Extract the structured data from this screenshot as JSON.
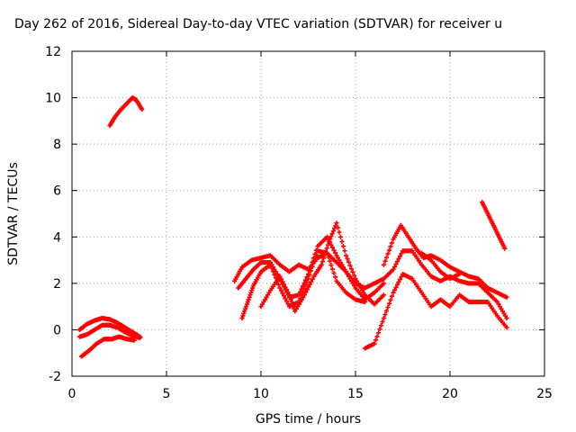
{
  "chart_data": {
    "type": "scatter",
    "title": "Day 262 of 2016, Sidereal Day-to-day VTEC variation (SDTVAR) for receiver u",
    "xlabel": "GPS time / hours",
    "ylabel": "SDTVAR / TECUs",
    "xlim": [
      0,
      25
    ],
    "ylim": [
      -2,
      12
    ],
    "xticks": [
      0,
      5,
      10,
      15,
      20,
      25
    ],
    "yticks": [
      -2,
      0,
      2,
      4,
      6,
      8,
      10,
      12
    ],
    "grid": true,
    "marker": "plus",
    "series_color": "#ff0000",
    "series": [
      {
        "x": [
          0.4,
          0.8,
          1.2,
          1.6,
          2.0,
          2.4,
          2.8,
          3.2,
          3.6
        ],
        "y": [
          0.0,
          0.25,
          0.4,
          0.5,
          0.45,
          0.3,
          0.1,
          -0.1,
          -0.3
        ]
      },
      {
        "x": [
          0.4,
          0.8,
          1.2,
          1.6,
          2.0,
          2.4,
          2.8,
          3.2,
          3.6
        ],
        "y": [
          -0.3,
          -0.2,
          0.0,
          0.2,
          0.2,
          0.1,
          -0.1,
          -0.25,
          -0.35
        ]
      },
      {
        "x": [
          0.5,
          0.9,
          1.3,
          1.7,
          2.1,
          2.5,
          2.9,
          3.3
        ],
        "y": [
          -1.15,
          -0.9,
          -0.6,
          -0.4,
          -0.4,
          -0.3,
          -0.4,
          -0.45
        ]
      },
      {
        "x": [
          2.0,
          2.3,
          2.6,
          2.9,
          3.2,
          3.4,
          3.7
        ],
        "y": [
          8.8,
          9.2,
          9.5,
          9.75,
          10.0,
          9.9,
          9.5
        ]
      },
      {
        "x": [
          8.6,
          9.0,
          9.5,
          10.0,
          10.5,
          11.0,
          11.5,
          12.0,
          12.5,
          13.0,
          13.5,
          14.0,
          14.5,
          15.0,
          15.5,
          16.0,
          16.5
        ],
        "y": [
          2.1,
          2.7,
          3.0,
          3.1,
          3.2,
          2.8,
          2.5,
          2.8,
          2.6,
          3.1,
          3.3,
          2.9,
          2.5,
          2.0,
          1.8,
          2.0,
          2.2
        ]
      },
      {
        "x": [
          8.8,
          9.2,
          9.6,
          10.0,
          10.5,
          11.0,
          11.5,
          12.0,
          12.5,
          13.0,
          13.5,
          14.0,
          14.5,
          15.0,
          15.5,
          16.0,
          16.5
        ],
        "y": [
          1.8,
          2.2,
          2.6,
          2.9,
          2.9,
          2.2,
          1.4,
          1.5,
          2.4,
          3.6,
          4.0,
          3.2,
          2.5,
          1.8,
          1.3,
          1.6,
          2.0
        ]
      },
      {
        "x": [
          9.0,
          9.3,
          9.6,
          10.0,
          10.5,
          11.0,
          11.5,
          12.0,
          12.5,
          13.0,
          13.5,
          14.0,
          14.5,
          15.0,
          15.5
        ],
        "y": [
          0.5,
          1.2,
          1.9,
          2.5,
          2.8,
          1.8,
          1.0,
          1.2,
          2.2,
          3.4,
          3.3,
          2.1,
          1.6,
          1.3,
          1.2
        ]
      },
      {
        "x": [
          10.0,
          10.5,
          11.0,
          11.5,
          11.8,
          12.3,
          12.8,
          13.2,
          13.6,
          14.0,
          14.5,
          15.0,
          15.5,
          16.0,
          16.5
        ],
        "y": [
          1.0,
          1.7,
          2.3,
          1.5,
          0.8,
          1.5,
          2.3,
          2.8,
          3.8,
          4.6,
          3.2,
          2.2,
          1.5,
          1.1,
          1.5
        ]
      },
      {
        "x": [
          15.5,
          16.0,
          16.5,
          17.0,
          17.5,
          18.0,
          18.5,
          19.0,
          19.5,
          20.0,
          20.5,
          21.0,
          21.5,
          22.0,
          22.5,
          23.0
        ],
        "y": [
          -0.8,
          -0.6,
          0.5,
          1.6,
          2.4,
          2.2,
          1.6,
          1.0,
          1.3,
          1.0,
          1.5,
          1.2,
          1.2,
          1.2,
          0.6,
          0.1
        ]
      },
      {
        "x": [
          16.5,
          17.0,
          17.5,
          18.0,
          18.5,
          19.0,
          19.5,
          20.0,
          20.5,
          21.0,
          21.5,
          22.0,
          22.5,
          23.0
        ],
        "y": [
          2.2,
          2.6,
          3.4,
          3.4,
          2.8,
          2.3,
          2.1,
          2.3,
          2.1,
          2.0,
          2.0,
          1.6,
          1.2,
          0.5
        ]
      },
      {
        "x": [
          16.5,
          17.0,
          17.4,
          17.8,
          18.2,
          18.6,
          19.0,
          19.5,
          20.0,
          20.5,
          21.0,
          21.5,
          22.0,
          22.5,
          23.0
        ],
        "y": [
          2.8,
          3.9,
          4.5,
          4.0,
          3.5,
          3.1,
          3.2,
          3.0,
          2.7,
          2.5,
          2.3,
          2.2,
          1.8,
          1.6,
          1.4
        ]
      },
      {
        "x": [
          18.5,
          19.0,
          19.5,
          20.0,
          20.5
        ],
        "y": [
          3.3,
          3.0,
          2.5,
          2.2,
          2.4
        ]
      },
      {
        "x": [
          21.7,
          22.0,
          22.3,
          22.6,
          22.9
        ],
        "y": [
          5.5,
          5.0,
          4.5,
          4.0,
          3.5
        ]
      }
    ]
  }
}
